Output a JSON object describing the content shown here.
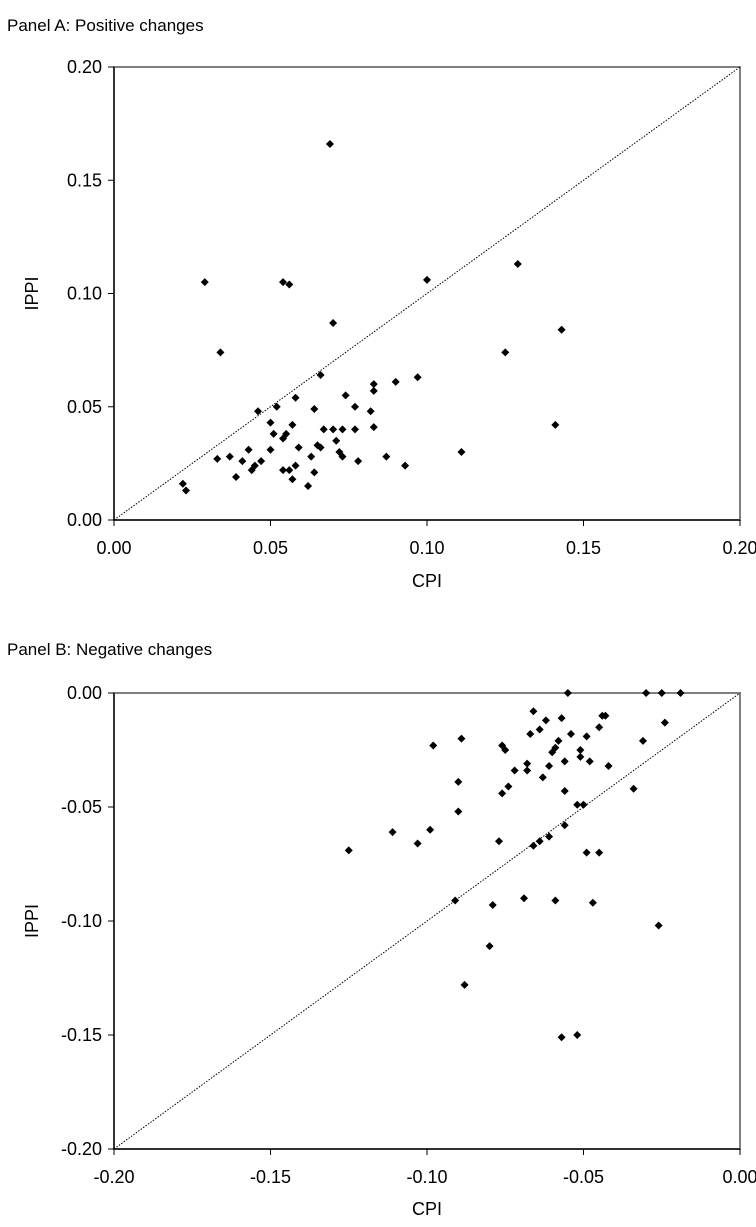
{
  "panels": [
    {
      "title": "Panel A: Positive changes"
    },
    {
      "title": "Panel B: Negative changes"
    }
  ],
  "chart_data": [
    {
      "type": "scatter",
      "title": "Panel A: Positive changes",
      "xlabel": "CPI",
      "ylabel": "IPPI",
      "xlim": [
        0,
        0.2
      ],
      "ylim": [
        0,
        0.2
      ],
      "xticks": [
        "0.00",
        "0.05",
        "0.10",
        "0.15",
        "0.20"
      ],
      "yticks": [
        "0.00",
        "0.05",
        "0.10",
        "0.15",
        "0.20"
      ],
      "reference_line": "45-degree",
      "points": [
        [
          0.022,
          0.016
        ],
        [
          0.023,
          0.013
        ],
        [
          0.029,
          0.105
        ],
        [
          0.033,
          0.027
        ],
        [
          0.034,
          0.074
        ],
        [
          0.037,
          0.028
        ],
        [
          0.039,
          0.019
        ],
        [
          0.041,
          0.026
        ],
        [
          0.043,
          0.031
        ],
        [
          0.044,
          0.022
        ],
        [
          0.045,
          0.024
        ],
        [
          0.046,
          0.048
        ],
        [
          0.047,
          0.026
        ],
        [
          0.05,
          0.031
        ],
        [
          0.05,
          0.043
        ],
        [
          0.051,
          0.038
        ],
        [
          0.052,
          0.05
        ],
        [
          0.054,
          0.036
        ],
        [
          0.054,
          0.022
        ],
        [
          0.054,
          0.105
        ],
        [
          0.055,
          0.038
        ],
        [
          0.056,
          0.104
        ],
        [
          0.056,
          0.022
        ],
        [
          0.057,
          0.018
        ],
        [
          0.057,
          0.042
        ],
        [
          0.058,
          0.054
        ],
        [
          0.058,
          0.024
        ],
        [
          0.059,
          0.032
        ],
        [
          0.062,
          0.015
        ],
        [
          0.063,
          0.028
        ],
        [
          0.064,
          0.049
        ],
        [
          0.064,
          0.021
        ],
        [
          0.065,
          0.033
        ],
        [
          0.066,
          0.064
        ],
        [
          0.066,
          0.032
        ],
        [
          0.067,
          0.04
        ],
        [
          0.069,
          0.166
        ],
        [
          0.07,
          0.087
        ],
        [
          0.07,
          0.04
        ],
        [
          0.071,
          0.035
        ],
        [
          0.072,
          0.03
        ],
        [
          0.073,
          0.04
        ],
        [
          0.073,
          0.028
        ],
        [
          0.074,
          0.055
        ],
        [
          0.077,
          0.04
        ],
        [
          0.077,
          0.05
        ],
        [
          0.078,
          0.026
        ],
        [
          0.082,
          0.048
        ],
        [
          0.083,
          0.057
        ],
        [
          0.083,
          0.041
        ],
        [
          0.083,
          0.06
        ],
        [
          0.087,
          0.028
        ],
        [
          0.09,
          0.061
        ],
        [
          0.093,
          0.024
        ],
        [
          0.097,
          0.063
        ],
        [
          0.1,
          0.106
        ],
        [
          0.111,
          0.03
        ],
        [
          0.125,
          0.074
        ],
        [
          0.129,
          0.113
        ],
        [
          0.141,
          0.042
        ],
        [
          0.143,
          0.084
        ]
      ]
    },
    {
      "type": "scatter",
      "title": "Panel B: Negative changes",
      "xlabel": "CPI",
      "ylabel": "IPPI",
      "xlim": [
        -0.2,
        0
      ],
      "ylim": [
        -0.2,
        0
      ],
      "xticks": [
        "-0.20",
        "-0.15",
        "-0.10",
        "-0.05",
        "0.00"
      ],
      "yticks": [
        "0.00",
        "-0.05",
        "-0.10",
        "-0.15",
        "-0.20"
      ],
      "reference_line": "45-degree",
      "points": [
        [
          -0.125,
          -0.069
        ],
        [
          -0.111,
          -0.061
        ],
        [
          -0.103,
          -0.066
        ],
        [
          -0.099,
          -0.06
        ],
        [
          -0.098,
          -0.023
        ],
        [
          -0.091,
          -0.091
        ],
        [
          -0.09,
          -0.052
        ],
        [
          -0.09,
          -0.039
        ],
        [
          -0.089,
          -0.02
        ],
        [
          -0.088,
          -0.128
        ],
        [
          -0.08,
          -0.111
        ],
        [
          -0.079,
          -0.093
        ],
        [
          -0.077,
          -0.065
        ],
        [
          -0.076,
          -0.044
        ],
        [
          -0.076,
          -0.023
        ],
        [
          -0.075,
          -0.025
        ],
        [
          -0.074,
          -0.041
        ],
        [
          -0.072,
          -0.034
        ],
        [
          -0.069,
          -0.09
        ],
        [
          -0.068,
          -0.031
        ],
        [
          -0.068,
          -0.034
        ],
        [
          -0.067,
          -0.018
        ],
        [
          -0.066,
          -0.067
        ],
        [
          -0.066,
          -0.008
        ],
        [
          -0.064,
          -0.016
        ],
        [
          -0.064,
          -0.065
        ],
        [
          -0.063,
          -0.037
        ],
        [
          -0.062,
          -0.012
        ],
        [
          -0.061,
          -0.063
        ],
        [
          -0.061,
          -0.032
        ],
        [
          -0.06,
          -0.026
        ],
        [
          -0.059,
          -0.091
        ],
        [
          -0.059,
          -0.024
        ],
        [
          -0.058,
          -0.021
        ],
        [
          -0.057,
          -0.151
        ],
        [
          -0.057,
          -0.011
        ],
        [
          -0.056,
          -0.058
        ],
        [
          -0.056,
          -0.043
        ],
        [
          -0.056,
          -0.03
        ],
        [
          -0.055,
          0.0
        ],
        [
          -0.054,
          -0.018
        ],
        [
          -0.052,
          -0.15
        ],
        [
          -0.052,
          -0.049
        ],
        [
          -0.051,
          -0.025
        ],
        [
          -0.051,
          -0.028
        ],
        [
          -0.05,
          -0.049
        ],
        [
          -0.049,
          -0.07
        ],
        [
          -0.049,
          -0.019
        ],
        [
          -0.048,
          -0.03
        ],
        [
          -0.047,
          -0.092
        ],
        [
          -0.045,
          -0.07
        ],
        [
          -0.045,
          -0.015
        ],
        [
          -0.044,
          -0.01
        ],
        [
          -0.043,
          -0.01
        ],
        [
          -0.042,
          -0.032
        ],
        [
          -0.034,
          -0.042
        ],
        [
          -0.031,
          -0.021
        ],
        [
          -0.03,
          0.0
        ],
        [
          -0.026,
          -0.102
        ],
        [
          -0.025,
          0.0
        ],
        [
          -0.024,
          -0.013
        ],
        [
          -0.019,
          0.0
        ]
      ]
    }
  ]
}
